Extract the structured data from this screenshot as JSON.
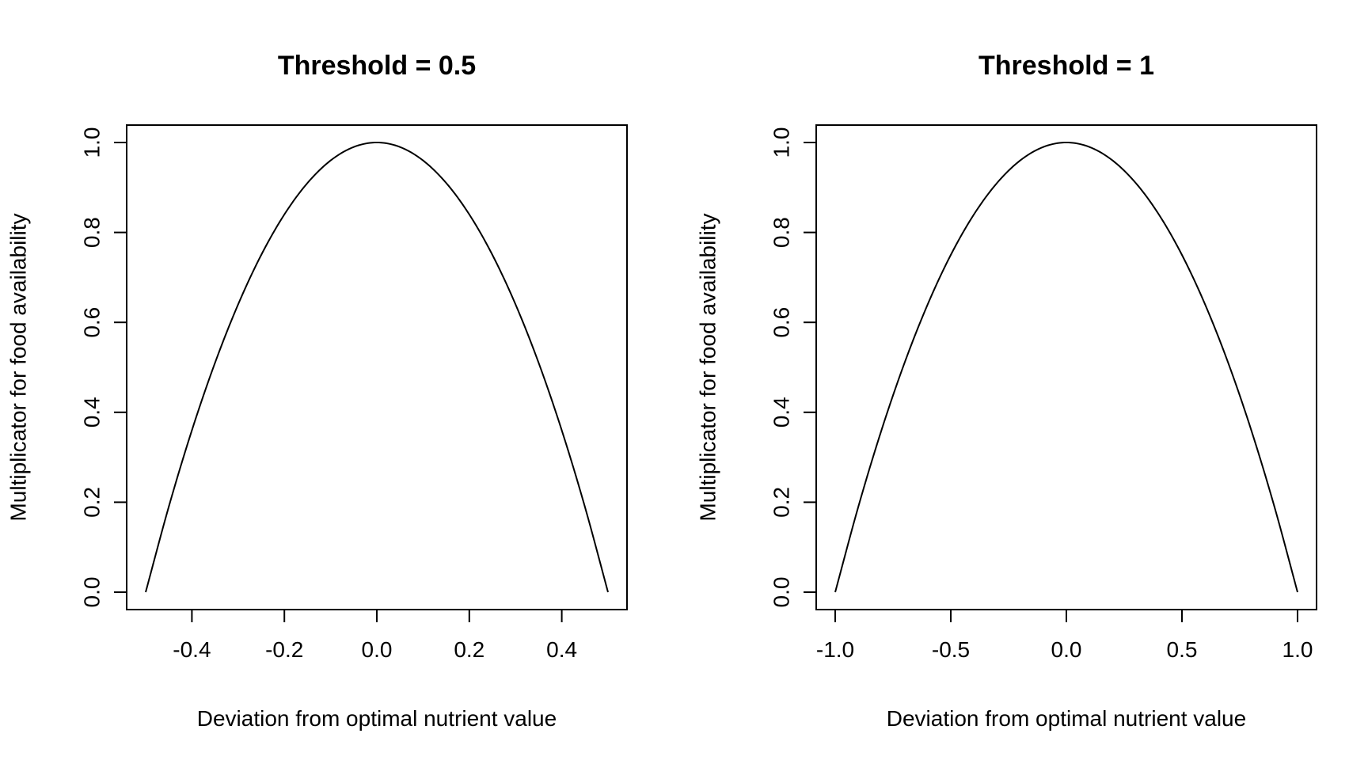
{
  "chart_data": [
    {
      "type": "line",
      "title": "Threshold = 0.5",
      "xlabel": "Deviation from optimal nutrient value",
      "ylabel": "Multiplicator for food availability",
      "xlim": [
        -0.5,
        0.5
      ],
      "ylim": [
        0.0,
        1.0
      ],
      "xticks": [
        -0.4,
        -0.2,
        0.0,
        0.2,
        0.4
      ],
      "xtick_labels": [
        "-0.4",
        "-0.2",
        "0.0",
        "0.2",
        "0.4"
      ],
      "yticks": [
        0.0,
        0.2,
        0.4,
        0.6,
        0.8,
        1.0
      ],
      "ytick_labels": [
        "0.0",
        "0.2",
        "0.4",
        "0.6",
        "0.8",
        "1.0"
      ],
      "grid": false,
      "series": [
        {
          "x": [
            -0.5,
            -0.45,
            -0.4,
            -0.35,
            -0.3,
            -0.25,
            -0.2,
            -0.15,
            -0.1,
            -0.05,
            0.0,
            0.05,
            0.1,
            0.15,
            0.2,
            0.25,
            0.3,
            0.35,
            0.4,
            0.45,
            0.5
          ],
          "y": [
            0.0,
            0.19,
            0.36,
            0.51,
            0.64,
            0.75,
            0.84,
            0.91,
            0.96,
            0.99,
            1.0,
            0.99,
            0.96,
            0.91,
            0.84,
            0.75,
            0.64,
            0.51,
            0.36,
            0.19,
            0.0
          ],
          "color": "#000000"
        }
      ]
    },
    {
      "type": "line",
      "title": "Threshold = 1",
      "xlabel": "Deviation from optimal nutrient value",
      "ylabel": "Multiplicator for food availability",
      "xlim": [
        -1.0,
        1.0
      ],
      "ylim": [
        0.0,
        1.0
      ],
      "xticks": [
        -1.0,
        -0.5,
        0.0,
        0.5,
        1.0
      ],
      "xtick_labels": [
        "-1.0",
        "-0.5",
        "0.0",
        "0.5",
        "1.0"
      ],
      "yticks": [
        0.0,
        0.2,
        0.4,
        0.6,
        0.8,
        1.0
      ],
      "ytick_labels": [
        "0.0",
        "0.2",
        "0.4",
        "0.6",
        "0.8",
        "1.0"
      ],
      "grid": false,
      "series": [
        {
          "x": [
            -1.0,
            -0.9,
            -0.8,
            -0.7,
            -0.6,
            -0.5,
            -0.4,
            -0.3,
            -0.2,
            -0.1,
            0.0,
            0.1,
            0.2,
            0.3,
            0.4,
            0.5,
            0.6,
            0.7,
            0.8,
            0.9,
            1.0
          ],
          "y": [
            0.0,
            0.19,
            0.36,
            0.51,
            0.64,
            0.75,
            0.84,
            0.91,
            0.96,
            0.99,
            1.0,
            0.99,
            0.96,
            0.91,
            0.84,
            0.75,
            0.64,
            0.51,
            0.36,
            0.19,
            0.0
          ],
          "color": "#000000"
        }
      ]
    }
  ]
}
